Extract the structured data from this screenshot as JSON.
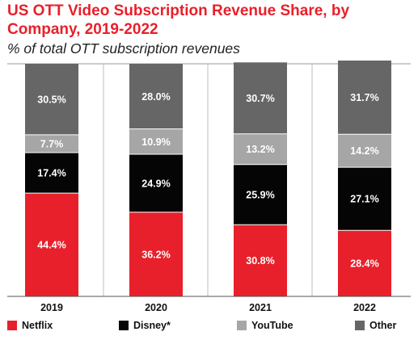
{
  "chart_data": {
    "type": "bar",
    "stacked": true,
    "title": "US OTT Video Subscription Revenue Share, by Company, 2019-2022",
    "subtitle": "% of total OTT subscription revenues",
    "categories": [
      "2019",
      "2020",
      "2021",
      "2022"
    ],
    "series": [
      {
        "name": "Netflix",
        "color": "#e8202b",
        "values": [
          44.4,
          36.2,
          30.8,
          28.4
        ],
        "labels": [
          "44.4%",
          "36.2%",
          "30.8%",
          "28.4%"
        ]
      },
      {
        "name": "Disney*",
        "color": "#050505",
        "values": [
          17.4,
          24.9,
          25.9,
          27.1
        ],
        "labels": [
          "17.4%",
          "24.9%",
          "25.9%",
          "27.1%"
        ]
      },
      {
        "name": "YouTube",
        "color": "#a6a6a6",
        "values": [
          7.7,
          10.9,
          13.2,
          14.2
        ],
        "labels": [
          "7.7%",
          "10.9%",
          "13.2%",
          "14.2%"
        ]
      },
      {
        "name": "Other",
        "color": "#666666",
        "values": [
          30.5,
          28.0,
          30.7,
          31.7
        ],
        "labels": [
          "30.5%",
          "28.0%",
          "30.7%",
          "31.7%"
        ]
      }
    ],
    "ylim": [
      0,
      100
    ],
    "legend_position": "bottom"
  }
}
